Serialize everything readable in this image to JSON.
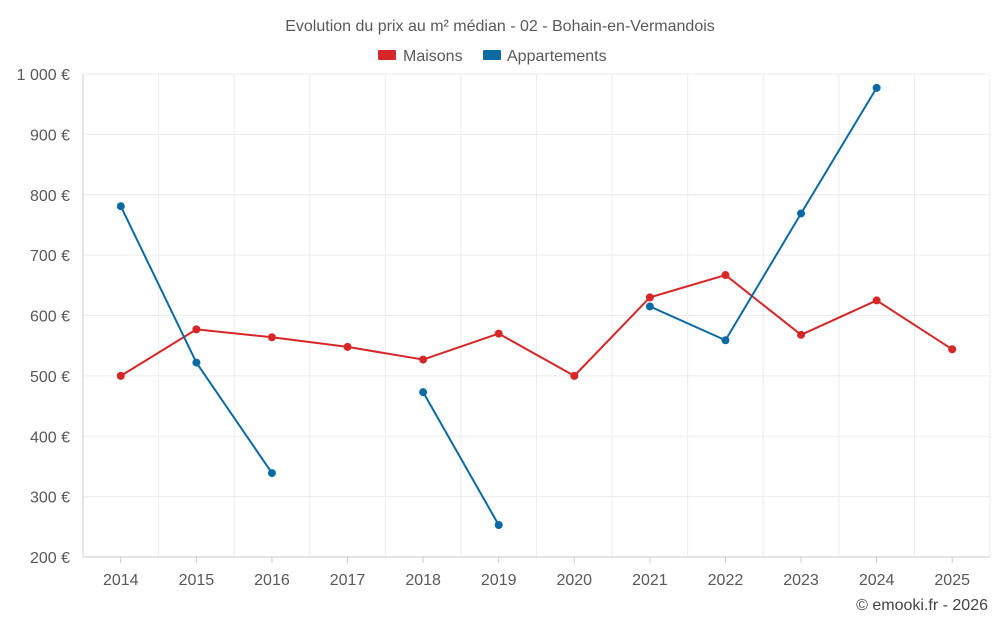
{
  "chart_data": {
    "type": "line",
    "title": "Evolution du prix au m² médian - 02 - Bohain-en-Vermandois",
    "categories": [
      "2014",
      "2015",
      "2016",
      "2017",
      "2018",
      "2019",
      "2020",
      "2021",
      "2022",
      "2023",
      "2024",
      "2025"
    ],
    "ylim": [
      200,
      1000
    ],
    "yticks": [
      200,
      300,
      400,
      500,
      600,
      700,
      800,
      900,
      1000
    ],
    "ytick_labels": [
      "200 €",
      "300 €",
      "400 €",
      "500 €",
      "600 €",
      "700 €",
      "800 €",
      "900 €",
      "1 000 €"
    ],
    "grid": true,
    "legend_position": "top-center",
    "series": [
      {
        "name": "Maisons",
        "color": "#d62728",
        "values": [
          500,
          577,
          564,
          548,
          527,
          570,
          500,
          630,
          667,
          568,
          625,
          544
        ]
      },
      {
        "name": "Appartements",
        "color": "#0b6aa2",
        "values": [
          781,
          522,
          339,
          null,
          473,
          253,
          null,
          615,
          559,
          769,
          977,
          null
        ]
      }
    ]
  },
  "credit": "© emooki.fr - 2026"
}
